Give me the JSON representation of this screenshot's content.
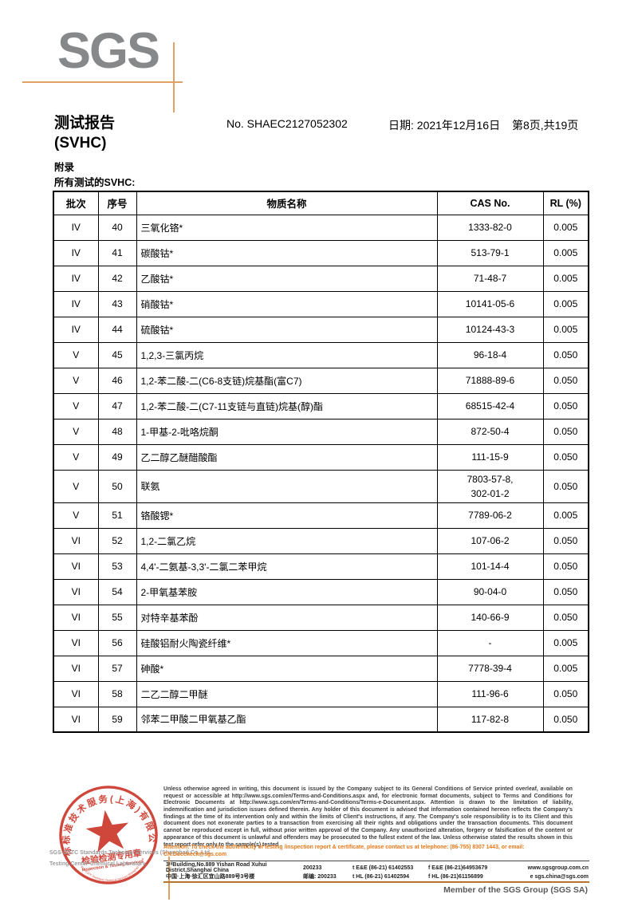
{
  "colors": {
    "logo_gray": "#87888a",
    "crosshair_orange": "#e0a264",
    "attention_orange": "#e87818",
    "stamp_red": "#cc372a"
  },
  "header": {
    "logo_text": "SGS",
    "title_line1": "测试报告",
    "title_line2": "(SVHC)",
    "report_no": "No. SHAEC2127052302",
    "date": "日期: 2021年12月16日",
    "pages": "第8页,共19页",
    "appendix": "附录",
    "subtitle": "所有测试的SVHC:"
  },
  "table": {
    "headers": [
      "批次",
      "序号",
      "物质名称",
      "CAS No.",
      "RL (%)"
    ],
    "rows": [
      {
        "batch": "IV",
        "no": "40",
        "name": "三氧化铬*",
        "cas": "1333-82-0",
        "rl": "0.005"
      },
      {
        "batch": "IV",
        "no": "41",
        "name": "碳酸钴*",
        "cas": "513-79-1",
        "rl": "0.005"
      },
      {
        "batch": "IV",
        "no": "42",
        "name": "乙酸钴*",
        "cas": "71-48-7",
        "rl": "0.005"
      },
      {
        "batch": "IV",
        "no": "43",
        "name": "硝酸钴*",
        "cas": "10141-05-6",
        "rl": "0.005"
      },
      {
        "batch": "IV",
        "no": "44",
        "name": "硫酸钴*",
        "cas": "10124-43-3",
        "rl": "0.005"
      },
      {
        "batch": "V",
        "no": "45",
        "name": "1,2,3-三氯丙烷",
        "cas": "96-18-4",
        "rl": "0.050"
      },
      {
        "batch": "V",
        "no": "46",
        "name": "1,2-苯二酸-二(C6-8支链)烷基酯(富C7)",
        "cas": "71888-89-6",
        "rl": "0.050"
      },
      {
        "batch": "V",
        "no": "47",
        "name": "1,2-苯二酸-二(C7-11支链与直链)烷基(醇)酯",
        "cas": "68515-42-4",
        "rl": "0.050"
      },
      {
        "batch": "V",
        "no": "48",
        "name": "1-甲基-2-吡咯烷酮",
        "cas": "872-50-4",
        "rl": "0.050"
      },
      {
        "batch": "V",
        "no": "49",
        "name": "乙二醇乙醚醋酸酯",
        "cas": "111-15-9",
        "rl": "0.050"
      },
      {
        "batch": "V",
        "no": "50",
        "name": "联氨",
        "cas": "7803-57-8,\n302-01-2",
        "rl": "0.050"
      },
      {
        "batch": "V",
        "no": "51",
        "name": "铬酸锶*",
        "cas": "7789-06-2",
        "rl": "0.005"
      },
      {
        "batch": "VI",
        "no": "52",
        "name": "1,2-二氯乙烷",
        "cas": "107-06-2",
        "rl": "0.050"
      },
      {
        "batch": "VI",
        "no": "53",
        "name": "4,4'-二氨基-3,3'-二氯二苯甲烷",
        "cas": "101-14-4",
        "rl": "0.050"
      },
      {
        "batch": "VI",
        "no": "54",
        "name": "2-甲氧基苯胺",
        "cas": "90-04-0",
        "rl": "0.050"
      },
      {
        "batch": "VI",
        "no": "55",
        "name": "对特辛基苯酚",
        "cas": "140-66-9",
        "rl": "0.050"
      },
      {
        "batch": "VI",
        "no": "56",
        "name": "硅酸铝耐火陶瓷纤维*",
        "cas": "-",
        "rl": "0.005"
      },
      {
        "batch": "VI",
        "no": "57",
        "name": "砷酸*",
        "cas": "7778-39-4",
        "rl": "0.005"
      },
      {
        "batch": "VI",
        "no": "58",
        "name": "二乙二醇二甲醚",
        "cas": "111-96-6",
        "rl": "0.050"
      },
      {
        "batch": "VI",
        "no": "59",
        "name": "邻苯二甲酸二甲氧基乙酯",
        "cas": "117-82-8",
        "rl": "0.050"
      }
    ]
  },
  "footer": {
    "legal": "Unless otherwise agreed in writing, this document is issued by the Company subject to its General Conditions of Service printed overleaf, available on request or accessible at http://www.sgs.com/en/Terms-and-Conditions.aspx and, for electronic format documents, subject to Terms and Conditions for Electronic Documents at http://www.sgs.com/en/Terms-and-Conditions/Terms-e-Document.aspx. Attention is drawn to the limitation of liability, indemnification and jurisdiction issues defined therein. Any holder of this document is advised that information contained hereon reflects the Company's findings at the time of its intervention only and within the limits of Client's instructions, if any. The Company's sole responsibility is to its Client and this document does not exonerate parties to a transaction from exercising all their rights and obligations under the transaction documents. This document cannot be reproduced except in full, without prior written approval of the Company. Any unauthorized alteration, forgery or falsification of the content or appearance of this document is unlawful and offenders may be prosecuted to the fullest extent of the law. Unless otherwise stated the results shown in this test report refer only to the sample(s) tested .",
    "attention": "Attention: To check the authenticity of testing /inspection report & certificate, please contact us at telephone: (86-755) 8307 1443, or email: CN.Doccheck@sgs.com",
    "address_en": "3ʳᵈBuilding,No.889 Yishan Road Xuhui District,Shanghai China",
    "postcode_en": "200233",
    "tel_en": "t E&E (86-21) 61402553",
    "fax_en": "f E&E (86-21)64953679",
    "web": "www.sgsgroup.com.cn",
    "address_cn": "中国·上海·徐汇区宜山路889号3号楼",
    "postcode_cn": "邮编: 200233",
    "tel_cn": "t HL (86-21) 61402594",
    "fax_cn": "f HL (86-21)61156899",
    "email": "e  sgs.china@sgs.com",
    "member": "Member of the SGS Group (SGS SA)",
    "company_line1": "SGS-CSTC Standards Technical Services (Shanghai) Co.,Ltd.",
    "company_line2": "Testing Center-Chemical Laboratory.",
    "stamp": {
      "ring_text": "通标标准技术服务(上海)有限公司",
      "center_text": "检验检测专用章",
      "center_text_en": "Inspection & Testing Services",
      "bottom_arc_text": "SGS-CSTC Standards Technical Services (Shanghai) Co.,Ltd."
    }
  }
}
